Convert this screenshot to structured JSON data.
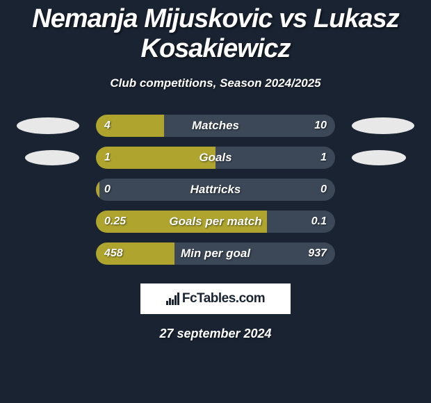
{
  "title": "Nemanja Mijuskovic vs Lukasz Kosakiewicz",
  "subtitle": "Club competitions, Season 2024/2025",
  "colors": {
    "background": "#1a2332",
    "left_fill": "#afa52e",
    "right_fill": "#3c4858",
    "text": "#ffffff",
    "ellipse": "#e8e8e8"
  },
  "show_left_icon_rows": [
    0,
    1
  ],
  "show_right_icon_rows": [
    0,
    1
  ],
  "rows": [
    {
      "label": "Matches",
      "left_val": "4",
      "right_val": "10",
      "left_pct": 28.6
    },
    {
      "label": "Goals",
      "left_val": "1",
      "right_val": "1",
      "left_pct": 50.0
    },
    {
      "label": "Hattricks",
      "left_val": "0",
      "right_val": "0",
      "left_pct": 1.5
    },
    {
      "label": "Goals per match",
      "left_val": "0.25",
      "right_val": "0.1",
      "left_pct": 71.4
    },
    {
      "label": "Min per goal",
      "left_val": "458",
      "right_val": "937",
      "left_pct": 32.8
    }
  ],
  "branding": "FcTables.com",
  "date": "27 september 2024"
}
